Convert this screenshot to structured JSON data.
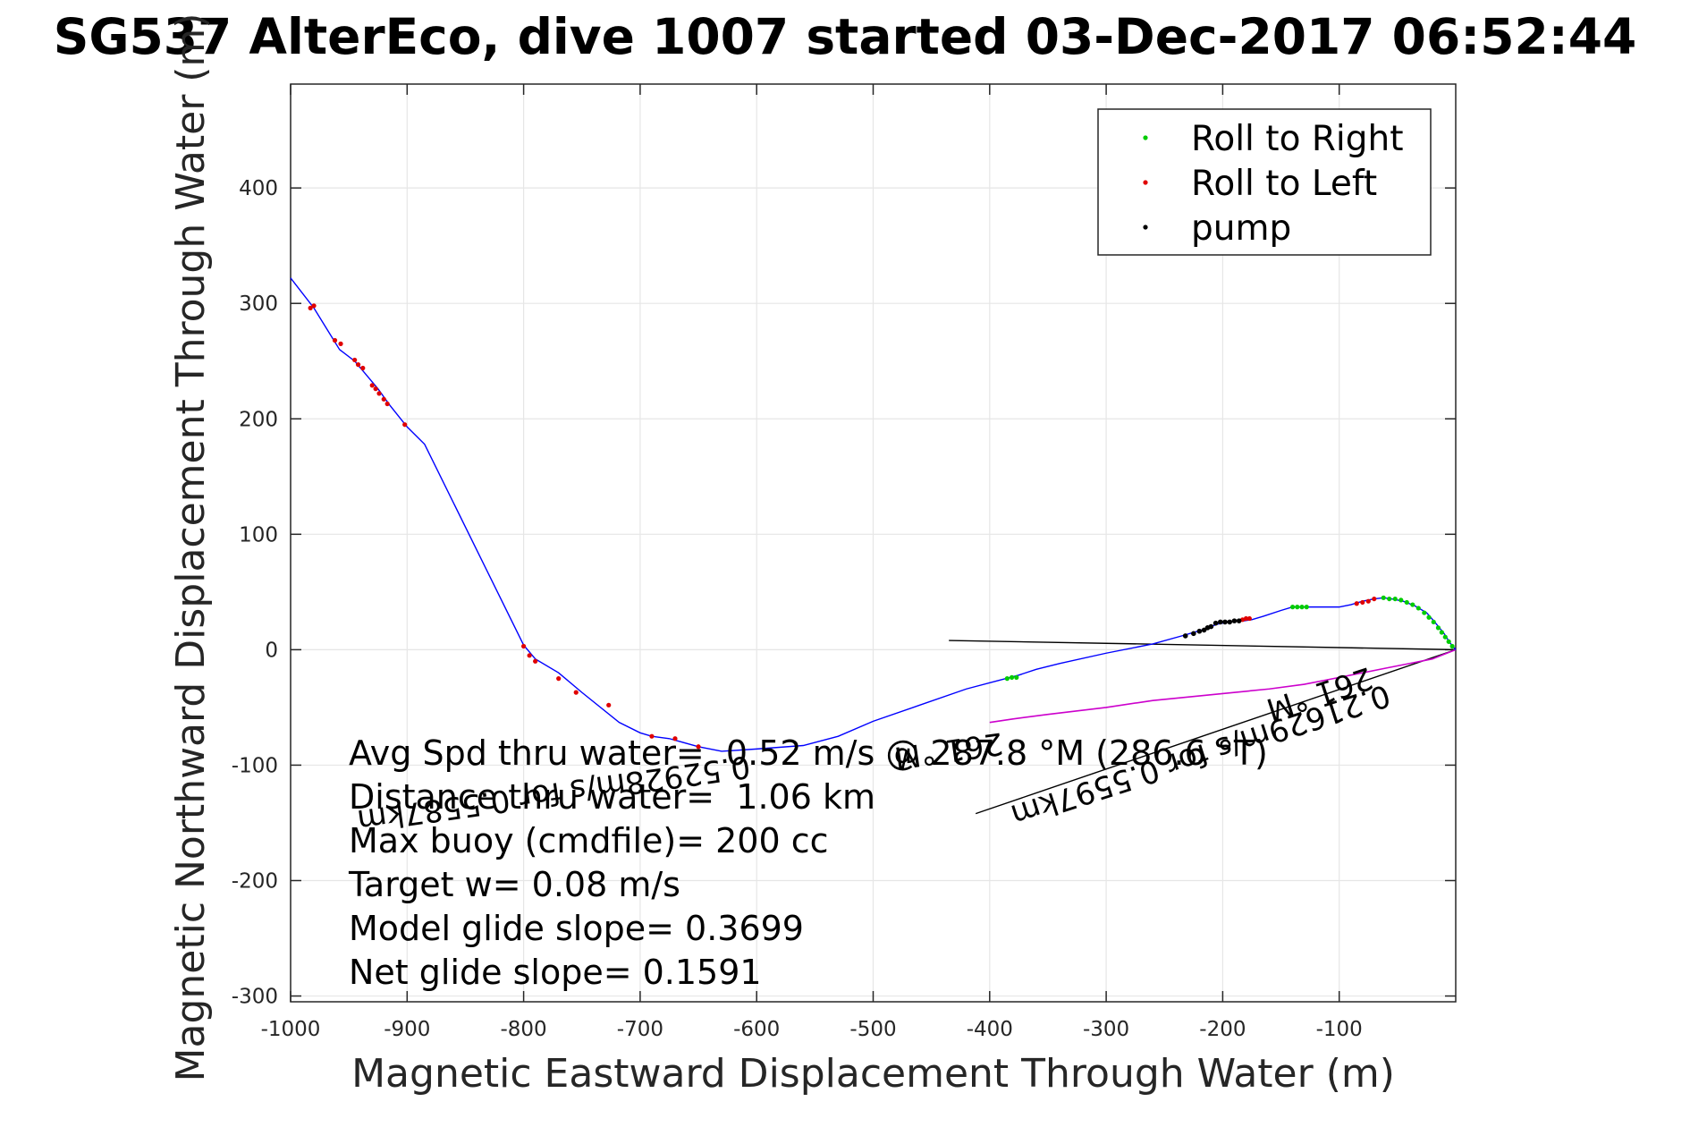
{
  "chart_data": {
    "type": "scatter",
    "title": "SG537 AlterEco, dive 1007 started 03-Dec-2017 06:52:44",
    "xlabel": "Magnetic Eastward Displacement Through Water (m)",
    "ylabel": "Magnetic Northward Displacement Through Water (m)",
    "xlim": [
      -1000,
      0
    ],
    "ylim": [
      -305,
      490
    ],
    "xticks": [
      -1000,
      -900,
      -800,
      -700,
      -600,
      -500,
      -400,
      -300,
      -200,
      -100
    ],
    "yticks": [
      -300,
      -200,
      -100,
      0,
      100,
      200,
      300,
      400
    ],
    "grid": true,
    "legend": {
      "placement": "top-right",
      "entries": [
        "Roll to Right",
        "Roll to Left",
        "pump"
      ]
    },
    "colors": {
      "track": "#0000ff",
      "roll_right": "#00cc00",
      "roll_left": "#e00000",
      "pump": "#000000",
      "current": "#cc00cc"
    },
    "track": {
      "x": [
        0,
        -5,
        -10,
        -18,
        -25,
        -35,
        -45,
        -55,
        -62,
        -70,
        -80,
        -90,
        -100,
        -110,
        -125,
        -140,
        -150,
        -165,
        -175,
        -182,
        -188,
        -195,
        -205,
        -215,
        -225,
        -235,
        -260,
        -300,
        -340,
        -360,
        -375,
        -390,
        -420,
        -460,
        -500,
        -530,
        -560,
        -600,
        -630,
        -650,
        -675,
        -690,
        -700,
        -718,
        -750,
        -770,
        -790,
        -800,
        -885,
        -900,
        -915,
        -925,
        -935,
        -945,
        -958,
        -980,
        -1000
      ],
      "y": [
        0,
        6,
        14,
        24,
        32,
        38,
        42,
        44,
        45,
        44,
        42,
        39,
        37,
        37,
        37,
        37,
        34,
        29,
        26,
        25,
        25,
        24,
        22,
        18,
        15,
        12,
        5,
        -3,
        -12,
        -17,
        -22,
        -26,
        -34,
        -48,
        -62,
        -75,
        -83,
        -86,
        -88,
        -84,
        -77,
        -75,
        -72,
        -63,
        -37,
        -20,
        -8,
        4,
        178,
        193,
        212,
        226,
        238,
        250,
        260,
        296,
        322
      ]
    },
    "roll_right": {
      "x": [
        -3,
        -6,
        -9,
        -12,
        -15,
        -19,
        -23,
        -27,
        -32,
        -37,
        -42,
        -47,
        -52,
        -57,
        -62,
        -128,
        -132,
        -136,
        -140,
        -385,
        -381,
        -377
      ],
      "y": [
        3,
        7,
        11,
        15,
        19,
        24,
        28,
        32,
        36,
        39,
        41,
        43,
        44,
        44,
        45,
        37,
        37,
        37,
        37,
        -25,
        -24,
        -24
      ]
    },
    "roll_left": {
      "x": [
        -70,
        -75,
        -80,
        -85,
        -177,
        -180,
        -183,
        -727,
        -755,
        -770,
        -790,
        -795,
        -800,
        -945,
        -942,
        -938,
        -930,
        -927,
        -924,
        -920,
        -917,
        -980,
        -983,
        -962,
        -957,
        -902,
        -690,
        -670,
        -650
      ],
      "y": [
        44,
        42,
        41,
        40,
        27,
        27,
        26,
        -48,
        -37,
        -25,
        -10,
        -5,
        3,
        251,
        247,
        244,
        229,
        226,
        222,
        217,
        213,
        298,
        296,
        268,
        265,
        195,
        -75,
        -77,
        -84
      ],
      "current": [
        0,
        -10,
        -20,
        -40,
        -60,
        -80,
        -100,
        -130,
        -160,
        -200,
        -230,
        -260,
        -300,
        -350,
        -380,
        -400
      ],
      "current_y": [
        0,
        -4,
        -8,
        -12,
        -16,
        -20,
        -24,
        -30,
        -34,
        -38,
        -41,
        -44,
        -50,
        -56,
        -60,
        -63
      ]
    },
    "pump": {
      "x": [
        -186,
        -190,
        -194,
        -198,
        -202,
        -206,
        -210,
        -213,
        -216,
        -220,
        -225,
        -232
      ],
      "y": [
        25,
        25,
        24,
        24,
        24,
        23,
        20,
        19,
        17,
        16,
        14,
        12
      ]
    },
    "lines": [
      {
        "x": [
          -435,
          0
        ],
        "y": [
          8,
          0
        ]
      },
      {
        "x": [
          -412,
          0
        ],
        "y": [
          -142,
          0
        ]
      }
    ],
    "annotations": [
      {
        "text": "0.52928m/s for 0.5587km",
        "x": -607,
        "y": -92,
        "angle": 172
      },
      {
        "text": "261 °M",
        "x": -390,
        "y": -72,
        "angle": 172
      },
      {
        "text": "0.21629m/s for 0.5597km",
        "x": -60,
        "y": -30,
        "angle": 162
      },
      {
        "text": "261 °M",
        "x": -75,
        "y": -15,
        "angle": 162
      }
    ],
    "info_lines": [
      "Avg Spd thru water=  0.52 m/s @ 287.8 °M (286.6 °T)",
      "Distance thru water=  1.06 km",
      "Max buoy (cmdfile)= 200 cc",
      "Target w= 0.08 m/s",
      "Model glide slope= 0.3699",
      "Net glide slope= 0.1591"
    ]
  }
}
